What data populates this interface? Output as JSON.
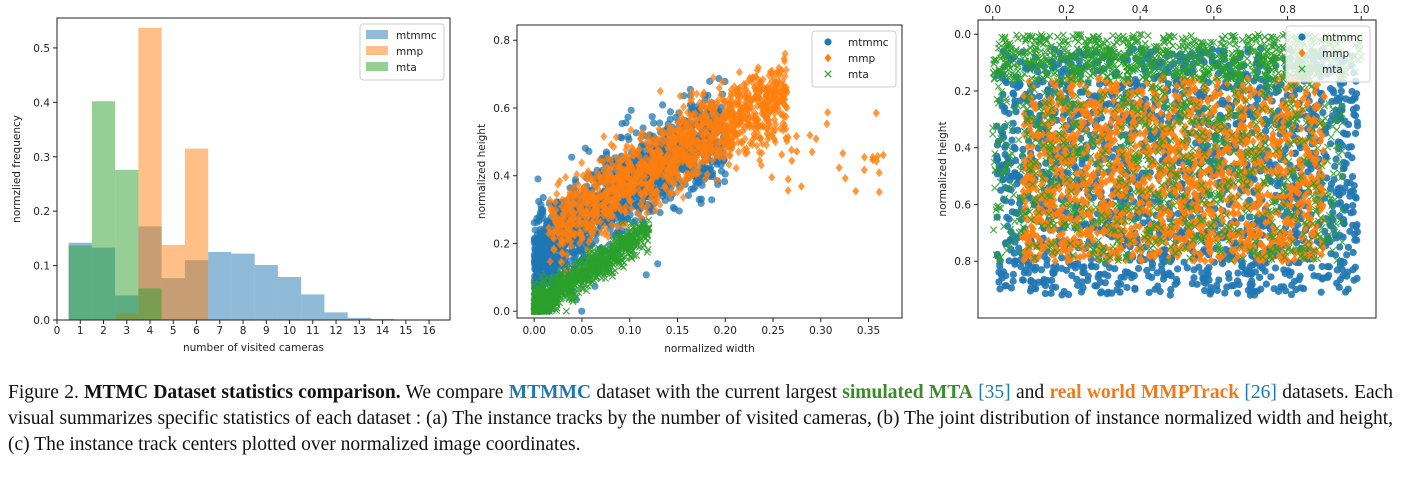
{
  "figure": {
    "caption": {
      "label": "Figure 2.",
      "title": "MTMC Dataset statistics comparison.",
      "t1": "We compare",
      "mtmmc": "MTMMC",
      "t2": "dataset with the current largest",
      "mta": "simulated MTA",
      "ref35": "[35]",
      "t3": "and",
      "mmp": "real world MMPTrack",
      "ref26": "[26]",
      "t4": "datasets. Each visual summarizes specific statistics of each dataset : (a) The instance tracks by the number of visited cameras, (b) The joint distribution of instance normalized width and height, (c) The instance track centers plotted over normalized image coordinates."
    }
  },
  "colors": {
    "mtmmc": "#1f77b4",
    "mmp": "#ff7f0e",
    "mta": "#2ca02c"
  },
  "chart_data": [
    {
      "type": "bar",
      "xlabel": "number of visited cameras",
      "ylabel": "normzlied frequency",
      "xlim": [
        0,
        16.9
      ],
      "ylim": [
        0,
        0.555
      ],
      "xticks": [
        0,
        1,
        2,
        3,
        4,
        5,
        6,
        7,
        8,
        9,
        10,
        11,
        12,
        13,
        14,
        15,
        16
      ],
      "yticks": [
        0.0,
        0.1,
        0.2,
        0.3,
        0.4,
        0.5
      ],
      "legend": "top-right",
      "series": [
        {
          "name": "mtmmc",
          "bins": [
            [
              0.5,
              1.5,
              0.142
            ],
            [
              1.5,
              2.5,
              0.133
            ],
            [
              2.5,
              3.5,
              0.045
            ],
            [
              3.5,
              4.5,
              0.172
            ],
            [
              4.5,
              5.5,
              0.077
            ],
            [
              5.5,
              6.5,
              0.11
            ],
            [
              6.5,
              7.5,
              0.125
            ],
            [
              7.5,
              8.5,
              0.122
            ],
            [
              8.5,
              9.5,
              0.101
            ],
            [
              9.5,
              10.5,
              0.079
            ],
            [
              10.5,
              11.5,
              0.047
            ],
            [
              11.5,
              12.5,
              0.014
            ],
            [
              12.5,
              13.5,
              0.004
            ],
            [
              13.5,
              14.5,
              0.002
            ],
            [
              14.5,
              15.5,
              0.001
            ],
            [
              15.5,
              16.5,
              0.001
            ]
          ]
        },
        {
          "name": "mmp",
          "bins": [
            [
              0.5,
              1.5,
              0.0
            ],
            [
              1.5,
              2.5,
              0.0
            ],
            [
              2.5,
              3.5,
              0.012
            ],
            [
              3.5,
              4.5,
              0.537
            ],
            [
              4.5,
              5.5,
              0.138
            ],
            [
              5.5,
              6.5,
              0.315
            ]
          ]
        },
        {
          "name": "mta",
          "bins": [
            [
              0.5,
              1.5,
              0.137
            ],
            [
              1.5,
              2.5,
              0.402
            ],
            [
              2.5,
              3.5,
              0.276
            ],
            [
              3.5,
              4.5,
              0.058
            ],
            [
              4.5,
              5.5,
              0.0
            ],
            [
              5.5,
              6.5,
              0.0
            ]
          ]
        }
      ]
    },
    {
      "type": "scatter",
      "xlabel": "normalized width",
      "ylabel": "normalized height",
      "xlim": [
        -0.018,
        0.385
      ],
      "ylim": [
        -0.02,
        0.845
      ],
      "xticks": [
        0.0,
        0.05,
        0.1,
        0.15,
        0.2,
        0.25,
        0.3,
        0.35
      ],
      "yticks": [
        0.0,
        0.2,
        0.4,
        0.6,
        0.8
      ],
      "legend": "top-right",
      "series": [
        {
          "name": "mtmmc",
          "marker": "circle"
        },
        {
          "name": "mmp",
          "marker": "diamond"
        },
        {
          "name": "mta",
          "marker": "x"
        }
      ]
    },
    {
      "type": "scatter",
      "xlabel": "",
      "ylabel": "normalized height",
      "xlim": [
        -0.04,
        1.04
      ],
      "ylim": [
        1.0,
        -0.05
      ],
      "xticks": [
        0.0,
        0.2,
        0.4,
        0.6,
        0.8,
        1.0
      ],
      "yticks": [
        0.0,
        0.2,
        0.4,
        0.6,
        0.8
      ],
      "x_axis_position": "top",
      "y_inverted": true,
      "legend": "top-right",
      "series": [
        {
          "name": "mtmmc",
          "marker": "circle"
        },
        {
          "name": "mmp",
          "marker": "diamond"
        },
        {
          "name": "mta",
          "marker": "x"
        }
      ]
    }
  ]
}
